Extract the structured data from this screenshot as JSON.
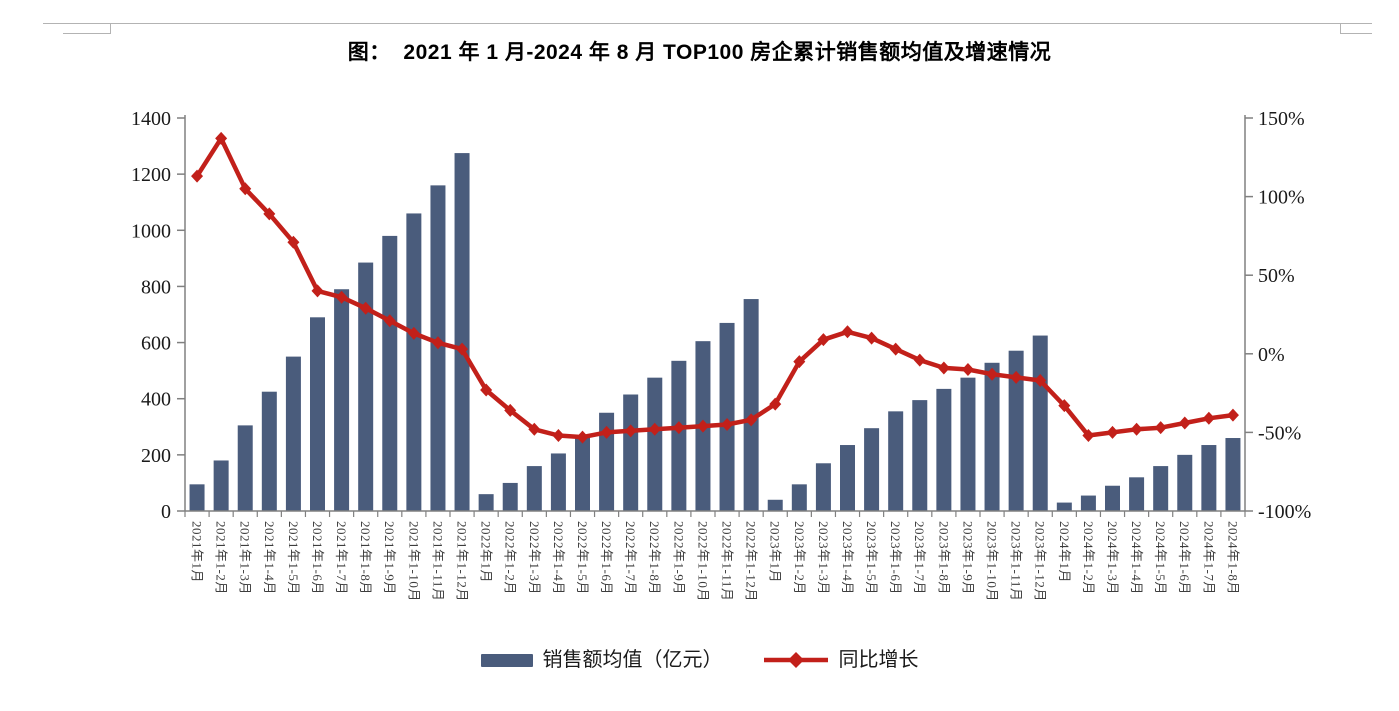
{
  "title": "图：  2021 年 1 月-2024 年 8 月 TOP100 房企累计销售额均值及增速情况",
  "chart_data": {
    "type": "bar+line combo",
    "grid": false,
    "legend_position": "bottom",
    "categories": [
      "2021年1月",
      "2021年1-2月",
      "2021年1-3月",
      "2021年1-4月",
      "2021年1-5月",
      "2021年1-6月",
      "2021年1-7月",
      "2021年1-8月",
      "2021年1-9月",
      "2021年1-10月",
      "2021年1-11月",
      "2021年1-12月",
      "2022年1月",
      "2022年1-2月",
      "2022年1-3月",
      "2022年1-4月",
      "2022年1-5月",
      "2022年1-6月",
      "2022年1-7月",
      "2022年1-8月",
      "2022年1-9月",
      "2022年1-10月",
      "2022年1-11月",
      "2022年1-12月",
      "2023年1月",
      "2023年1-2月",
      "2023年1-3月",
      "2023年1-4月",
      "2023年1-5月",
      "2023年1-6月",
      "2023年1-7月",
      "2023年1-8月",
      "2023年1-9月",
      "2023年1-10月",
      "2023年1-11月",
      "2023年1-12月",
      "2024年1月",
      "2024年1-2月",
      "2024年1-3月",
      "2024年1-4月",
      "2024年1-5月",
      "2024年1-6月",
      "2024年1-7月",
      "2024年1-8月"
    ],
    "series": [
      {
        "name": "销售额均值（亿元）",
        "type": "bar",
        "y_axis": "left",
        "color": "#4A5C7C",
        "values": [
          95,
          180,
          305,
          425,
          550,
          690,
          790,
          885,
          980,
          1060,
          1160,
          1275,
          60,
          100,
          160,
          205,
          265,
          350,
          415,
          475,
          535,
          605,
          670,
          755,
          40,
          95,
          170,
          235,
          295,
          355,
          395,
          435,
          475,
          528,
          571,
          625,
          30,
          55,
          90,
          120,
          160,
          200,
          235,
          260
        ]
      },
      {
        "name": "同比增长",
        "type": "line",
        "y_axis": "right",
        "color": "#C2201A",
        "marker": "diamond",
        "values_pct": [
          113,
          137,
          105,
          89,
          71,
          40,
          36,
          29,
          21,
          13,
          7,
          3,
          -23,
          -36,
          -48,
          -52,
          -53,
          -50,
          -49,
          -48,
          -47,
          -46,
          -45,
          -42,
          -32,
          -5,
          9,
          14,
          10,
          3,
          -4,
          -9,
          -10,
          -13,
          -15,
          -17,
          -33,
          -52,
          -50,
          -48,
          -47,
          -44,
          -41,
          -39
        ]
      }
    ],
    "left_axis": {
      "min": 0,
      "max": 1400,
      "step": 200,
      "tick_labels": [
        "0",
        "200",
        "400",
        "600",
        "800",
        "1000",
        "1200",
        "1400"
      ]
    },
    "right_axis": {
      "min": -100,
      "max": 150,
      "step": 50,
      "format": "percent",
      "tick_labels": [
        "-100%",
        "-50%",
        "0%",
        "50%",
        "100%",
        "150%"
      ]
    }
  },
  "colors": {
    "axis_line": "#808080",
    "axis_text": "#1a1a1a",
    "x_label_text": "#3d3d3d"
  }
}
